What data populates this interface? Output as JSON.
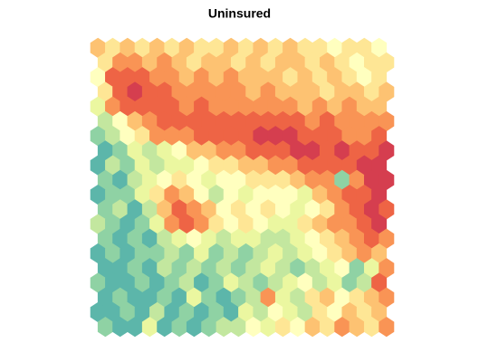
{
  "chart_data": {
    "type": "hexbin",
    "title": "Uninsured",
    "colors": [
      "#3288bd",
      "#66c2a5",
      "#abdda4",
      "#e6f598",
      "#ffffbf",
      "#fee08b",
      "#fdae61",
      "#f46d43",
      "#d53e4f"
    ],
    "vlim": [
      0,
      10
    ],
    "values": [
      [
        7,
        6,
        7,
        6,
        7,
        6,
        7,
        6,
        6,
        7,
        6,
        7,
        6,
        7,
        6,
        6,
        5,
        6,
        6,
        5
      ],
      [
        6,
        8,
        8,
        7,
        8,
        7,
        6,
        7,
        7,
        6,
        7,
        6,
        7,
        7,
        6,
        7,
        6,
        5,
        6,
        6
      ],
      [
        5,
        9,
        9,
        9,
        8,
        8,
        7,
        8,
        7,
        8,
        7,
        7,
        7,
        6,
        7,
        6,
        7,
        6,
        5,
        6
      ],
      [
        6,
        9,
        10,
        9,
        9,
        8,
        8,
        8,
        8,
        8,
        7,
        8,
        7,
        7,
        7,
        6,
        7,
        7,
        6,
        7
      ],
      [
        4,
        8,
        9,
        9,
        9,
        9,
        8,
        9,
        8,
        8,
        8,
        8,
        8,
        8,
        7,
        8,
        7,
        8,
        7,
        7
      ],
      [
        3,
        5,
        7,
        8,
        9,
        9,
        9,
        9,
        9,
        9,
        9,
        9,
        9,
        9,
        8,
        9,
        8,
        8,
        8,
        8
      ],
      [
        2,
        3,
        5,
        6,
        8,
        8,
        8,
        9,
        9,
        9,
        9,
        10,
        10,
        10,
        9,
        9,
        9,
        8,
        8,
        9
      ],
      [
        1,
        2,
        4,
        3,
        4,
        5,
        7,
        7,
        8,
        8,
        9,
        9,
        9,
        10,
        10,
        9,
        10,
        9,
        9,
        10
      ],
      [
        1,
        3,
        2,
        4,
        3,
        4,
        4,
        5,
        6,
        6,
        7,
        7,
        8,
        8,
        9,
        9,
        9,
        9,
        10,
        10
      ],
      [
        2,
        1,
        3,
        4,
        5,
        6,
        5,
        4,
        5,
        5,
        6,
        6,
        6,
        7,
        8,
        8,
        2,
        8,
        10,
        10
      ],
      [
        1,
        2,
        2,
        4,
        6,
        8,
        7,
        5,
        3,
        5,
        4,
        5,
        5,
        5,
        4,
        7,
        8,
        9,
        9,
        10
      ],
      [
        2,
        3,
        1,
        3,
        7,
        9,
        8,
        7,
        5,
        6,
        5,
        6,
        5,
        4,
        5,
        6,
        8,
        9,
        10,
        9
      ],
      [
        3,
        2,
        1,
        2,
        4,
        8,
        9,
        8,
        6,
        5,
        6,
        5,
        4,
        4,
        6,
        7,
        8,
        8,
        9,
        10
      ],
      [
        2,
        1,
        2,
        1,
        3,
        4,
        5,
        4,
        3,
        4,
        4,
        3,
        3,
        4,
        5,
        6,
        7,
        8,
        9,
        8
      ],
      [
        1,
        2,
        1,
        2,
        2,
        3,
        2,
        4,
        2,
        3,
        2,
        3,
        4,
        3,
        4,
        5,
        6,
        7,
        8,
        7
      ],
      [
        1,
        1,
        2,
        1,
        3,
        2,
        3,
        2,
        3,
        2,
        3,
        4,
        3,
        2,
        3,
        4,
        5,
        2,
        4,
        8
      ],
      [
        2,
        1,
        1,
        2,
        1,
        2,
        3,
        1,
        2,
        4,
        3,
        2,
        3,
        4,
        5,
        3,
        4,
        2,
        3,
        9
      ],
      [
        1,
        2,
        1,
        1,
        2,
        1,
        4,
        2,
        1,
        2,
        3,
        8,
        4,
        3,
        6,
        7,
        5,
        6,
        7,
        8
      ],
      [
        1,
        1,
        2,
        1,
        3,
        1,
        2,
        1,
        2,
        1,
        4,
        3,
        5,
        4,
        3,
        6,
        5,
        7,
        6,
        7
      ],
      [
        2,
        1,
        1,
        4,
        1,
        2,
        1,
        2,
        3,
        3,
        5,
        4,
        6,
        5,
        7,
        6,
        8,
        7,
        6,
        8
      ]
    ]
  }
}
